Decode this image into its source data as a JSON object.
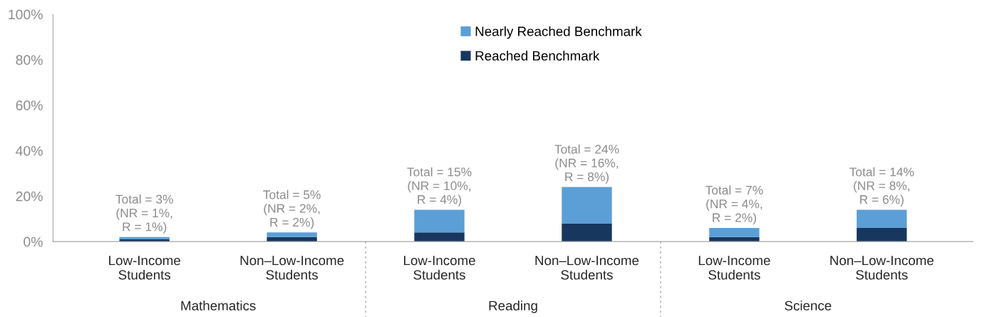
{
  "chart_data": {
    "type": "bar",
    "stacked": true,
    "categories": [
      "Low-Income\nStudents",
      "Non–Low-Income\nStudents",
      "Low-Income\nStudents",
      "Non–Low-Income\nStudents",
      "Low-Income\nStudents",
      "Non–Low-Income\nStudents"
    ],
    "series": [
      {
        "name": "Reached Benchmark",
        "color": "#17375e",
        "values": [
          1,
          2,
          4,
          8,
          2,
          6
        ]
      },
      {
        "name": "Nearly Reached Benchmark",
        "color": "#5b9fd6",
        "values": [
          1,
          2,
          10,
          16,
          4,
          8
        ]
      }
    ],
    "totals": [
      "Total = 3%\n(NR = 1%,\nR = 1%)",
      "Total = 5%\n(NR = 2%,\nR = 2%)",
      "Total = 15%\n(NR = 10%,\nR = 4%)",
      "Total = 24%\n(NR = 16%,\nR = 8%)",
      "Total = 7%\n(NR = 4%,\nR = 2%)",
      "Total = 14%\n(NR = 8%,\nR = 6%)"
    ],
    "annotations": [
      "Mathematics",
      "Reading",
      "Science"
    ],
    "ylim": [
      0,
      100
    ],
    "yticks": [
      {
        "value": 0,
        "label": "0%"
      },
      {
        "value": 20,
        "label": "20%"
      },
      {
        "value": 40,
        "label": "40%"
      },
      {
        "value": 60,
        "label": "60%"
      },
      {
        "value": 80,
        "label": "80%"
      },
      {
        "value": 100,
        "label": "100%"
      }
    ],
    "grid": false,
    "legend": "top"
  }
}
